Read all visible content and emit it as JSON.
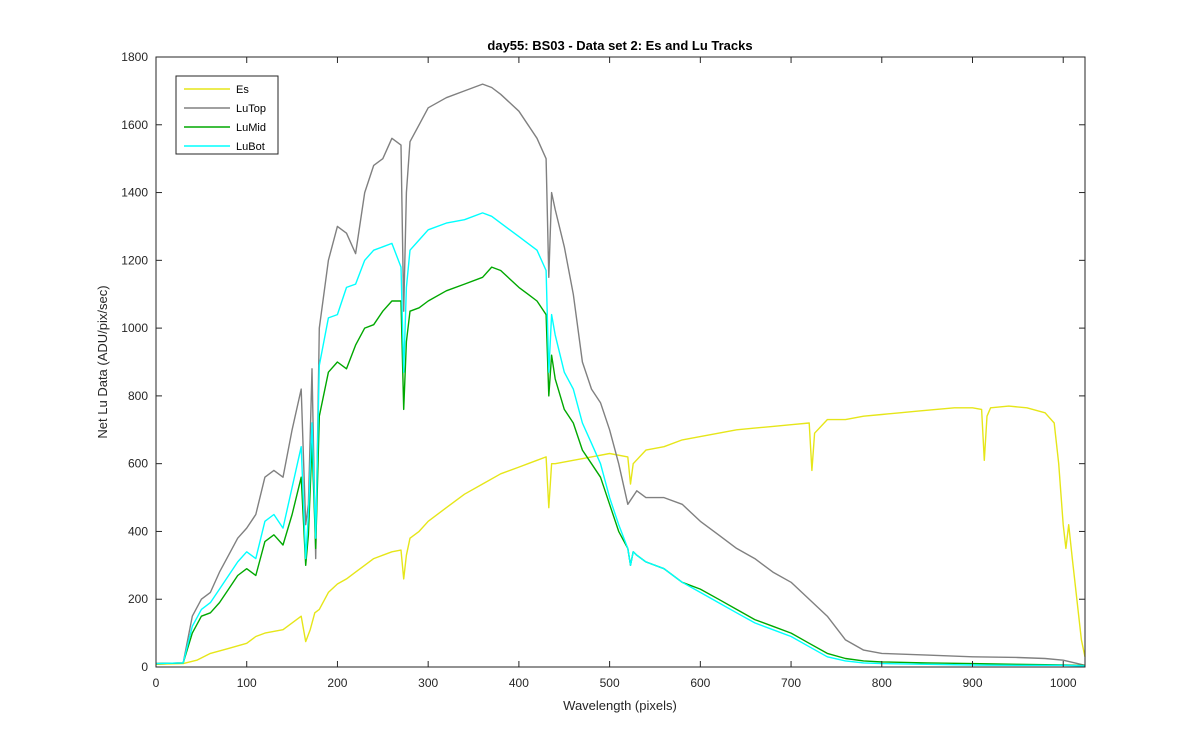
{
  "chart_data": {
    "type": "line",
    "title": "day55: BS03 - Data set 2: Es and Lu Tracks",
    "xlabel": "Wavelength (pixels)",
    "ylabel": "Net Lu Data (ADU/pix/sec)",
    "xlim": [
      0,
      1024
    ],
    "ylim": [
      0,
      1800
    ],
    "xticks": [
      0,
      100,
      200,
      300,
      400,
      500,
      600,
      700,
      800,
      900,
      1000
    ],
    "yticks": [
      0,
      200,
      400,
      600,
      800,
      1000,
      1200,
      1400,
      1600,
      1800
    ],
    "grid": false,
    "legend_position": "top-left",
    "series": [
      {
        "name": "Es",
        "color": "#e6e619",
        "x": [
          0,
          30,
          45,
          60,
          80,
          100,
          110,
          120,
          140,
          150,
          160,
          165,
          170,
          175,
          180,
          190,
          200,
          210,
          220,
          230,
          240,
          250,
          260,
          270,
          273,
          276,
          280,
          290,
          300,
          320,
          340,
          360,
          380,
          400,
          410,
          420,
          430,
          433,
          436,
          440,
          460,
          480,
          500,
          520,
          523,
          526,
          540,
          560,
          580,
          600,
          620,
          640,
          660,
          680,
          700,
          720,
          723,
          726,
          740,
          760,
          780,
          800,
          820,
          840,
          860,
          880,
          900,
          910,
          913,
          916,
          920,
          940,
          960,
          980,
          990,
          995,
          1000,
          1003,
          1006,
          1010,
          1020,
          1024
        ],
        "y": [
          8,
          10,
          20,
          40,
          55,
          70,
          90,
          100,
          110,
          130,
          150,
          75,
          110,
          160,
          170,
          220,
          245,
          260,
          280,
          300,
          320,
          330,
          340,
          345,
          260,
          330,
          380,
          400,
          430,
          470,
          510,
          540,
          570,
          590,
          600,
          610,
          620,
          470,
          600,
          600,
          610,
          620,
          630,
          620,
          540,
          600,
          640,
          650,
          670,
          680,
          690,
          700,
          705,
          710,
          715,
          720,
          580,
          690,
          730,
          730,
          740,
          745,
          750,
          755,
          760,
          765,
          765,
          760,
          610,
          740,
          765,
          770,
          765,
          750,
          720,
          600,
          420,
          350,
          420,
          320,
          80,
          30
        ]
      },
      {
        "name": "LuTop",
        "color": "#808080",
        "x": [
          0,
          30,
          40,
          50,
          60,
          70,
          80,
          90,
          100,
          110,
          120,
          130,
          140,
          150,
          160,
          165,
          168,
          172,
          176,
          180,
          190,
          200,
          210,
          220,
          230,
          240,
          250,
          260,
          270,
          273,
          276,
          280,
          290,
          300,
          320,
          340,
          360,
          370,
          380,
          400,
          410,
          420,
          430,
          433,
          436,
          440,
          450,
          460,
          470,
          480,
          490,
          500,
          510,
          520,
          530,
          540,
          560,
          580,
          600,
          620,
          640,
          660,
          680,
          700,
          720,
          740,
          760,
          780,
          800,
          850,
          900,
          950,
          980,
          1000,
          1024
        ],
        "y": [
          10,
          12,
          150,
          200,
          220,
          280,
          330,
          380,
          410,
          450,
          560,
          580,
          560,
          700,
          820,
          420,
          480,
          880,
          320,
          1000,
          1200,
          1300,
          1280,
          1220,
          1400,
          1480,
          1500,
          1560,
          1540,
          1050,
          1400,
          1550,
          1600,
          1650,
          1680,
          1700,
          1720,
          1710,
          1690,
          1640,
          1600,
          1560,
          1500,
          1150,
          1400,
          1350,
          1240,
          1100,
          900,
          820,
          780,
          700,
          600,
          480,
          520,
          500,
          500,
          480,
          430,
          390,
          350,
          320,
          280,
          250,
          200,
          150,
          80,
          50,
          40,
          35,
          30,
          28,
          25,
          20,
          5
        ]
      },
      {
        "name": "LuMid",
        "color": "#00a800",
        "x": [
          0,
          30,
          40,
          50,
          60,
          70,
          80,
          90,
          100,
          110,
          120,
          130,
          140,
          150,
          160,
          165,
          168,
          172,
          176,
          180,
          190,
          200,
          210,
          220,
          230,
          240,
          250,
          260,
          270,
          273,
          276,
          280,
          290,
          300,
          320,
          340,
          360,
          370,
          380,
          400,
          410,
          420,
          430,
          433,
          436,
          440,
          450,
          460,
          470,
          480,
          490,
          500,
          510,
          520,
          523,
          526,
          530,
          540,
          560,
          580,
          600,
          620,
          640,
          660,
          680,
          700,
          720,
          740,
          760,
          780,
          800,
          850,
          900,
          950,
          1000,
          1024
        ],
        "y": [
          10,
          12,
          100,
          150,
          160,
          190,
          230,
          270,
          290,
          270,
          370,
          390,
          360,
          450,
          560,
          300,
          390,
          660,
          350,
          740,
          870,
          900,
          880,
          950,
          1000,
          1010,
          1050,
          1080,
          1080,
          760,
          960,
          1050,
          1060,
          1080,
          1110,
          1130,
          1150,
          1180,
          1170,
          1120,
          1100,
          1080,
          1040,
          800,
          920,
          850,
          760,
          720,
          640,
          600,
          560,
          480,
          400,
          350,
          300,
          340,
          330,
          310,
          290,
          250,
          230,
          200,
          170,
          140,
          120,
          100,
          70,
          40,
          25,
          18,
          15,
          12,
          10,
          8,
          6,
          4
        ]
      },
      {
        "name": "LuBot",
        "color": "#00ffff",
        "x": [
          0,
          30,
          40,
          50,
          60,
          70,
          80,
          90,
          100,
          110,
          120,
          130,
          140,
          150,
          160,
          165,
          168,
          172,
          176,
          180,
          190,
          200,
          210,
          220,
          230,
          240,
          250,
          260,
          270,
          273,
          276,
          280,
          290,
          300,
          320,
          340,
          360,
          370,
          380,
          400,
          410,
          420,
          430,
          433,
          436,
          440,
          450,
          460,
          470,
          480,
          490,
          500,
          510,
          520,
          523,
          526,
          530,
          540,
          560,
          580,
          600,
          620,
          640,
          660,
          680,
          700,
          720,
          740,
          760,
          780,
          800,
          850,
          900,
          950,
          1000,
          1024
        ],
        "y": [
          10,
          12,
          120,
          170,
          190,
          230,
          270,
          310,
          340,
          320,
          430,
          450,
          410,
          530,
          650,
          320,
          450,
          720,
          380,
          890,
          1030,
          1040,
          1120,
          1130,
          1200,
          1230,
          1240,
          1250,
          1180,
          870,
          1120,
          1230,
          1260,
          1290,
          1310,
          1320,
          1340,
          1330,
          1310,
          1270,
          1250,
          1230,
          1170,
          870,
          1040,
          980,
          870,
          820,
          720,
          660,
          600,
          500,
          420,
          350,
          300,
          340,
          330,
          310,
          290,
          250,
          220,
          190,
          160,
          130,
          110,
          90,
          60,
          30,
          18,
          12,
          10,
          8,
          6,
          5,
          5,
          3
        ]
      }
    ]
  }
}
